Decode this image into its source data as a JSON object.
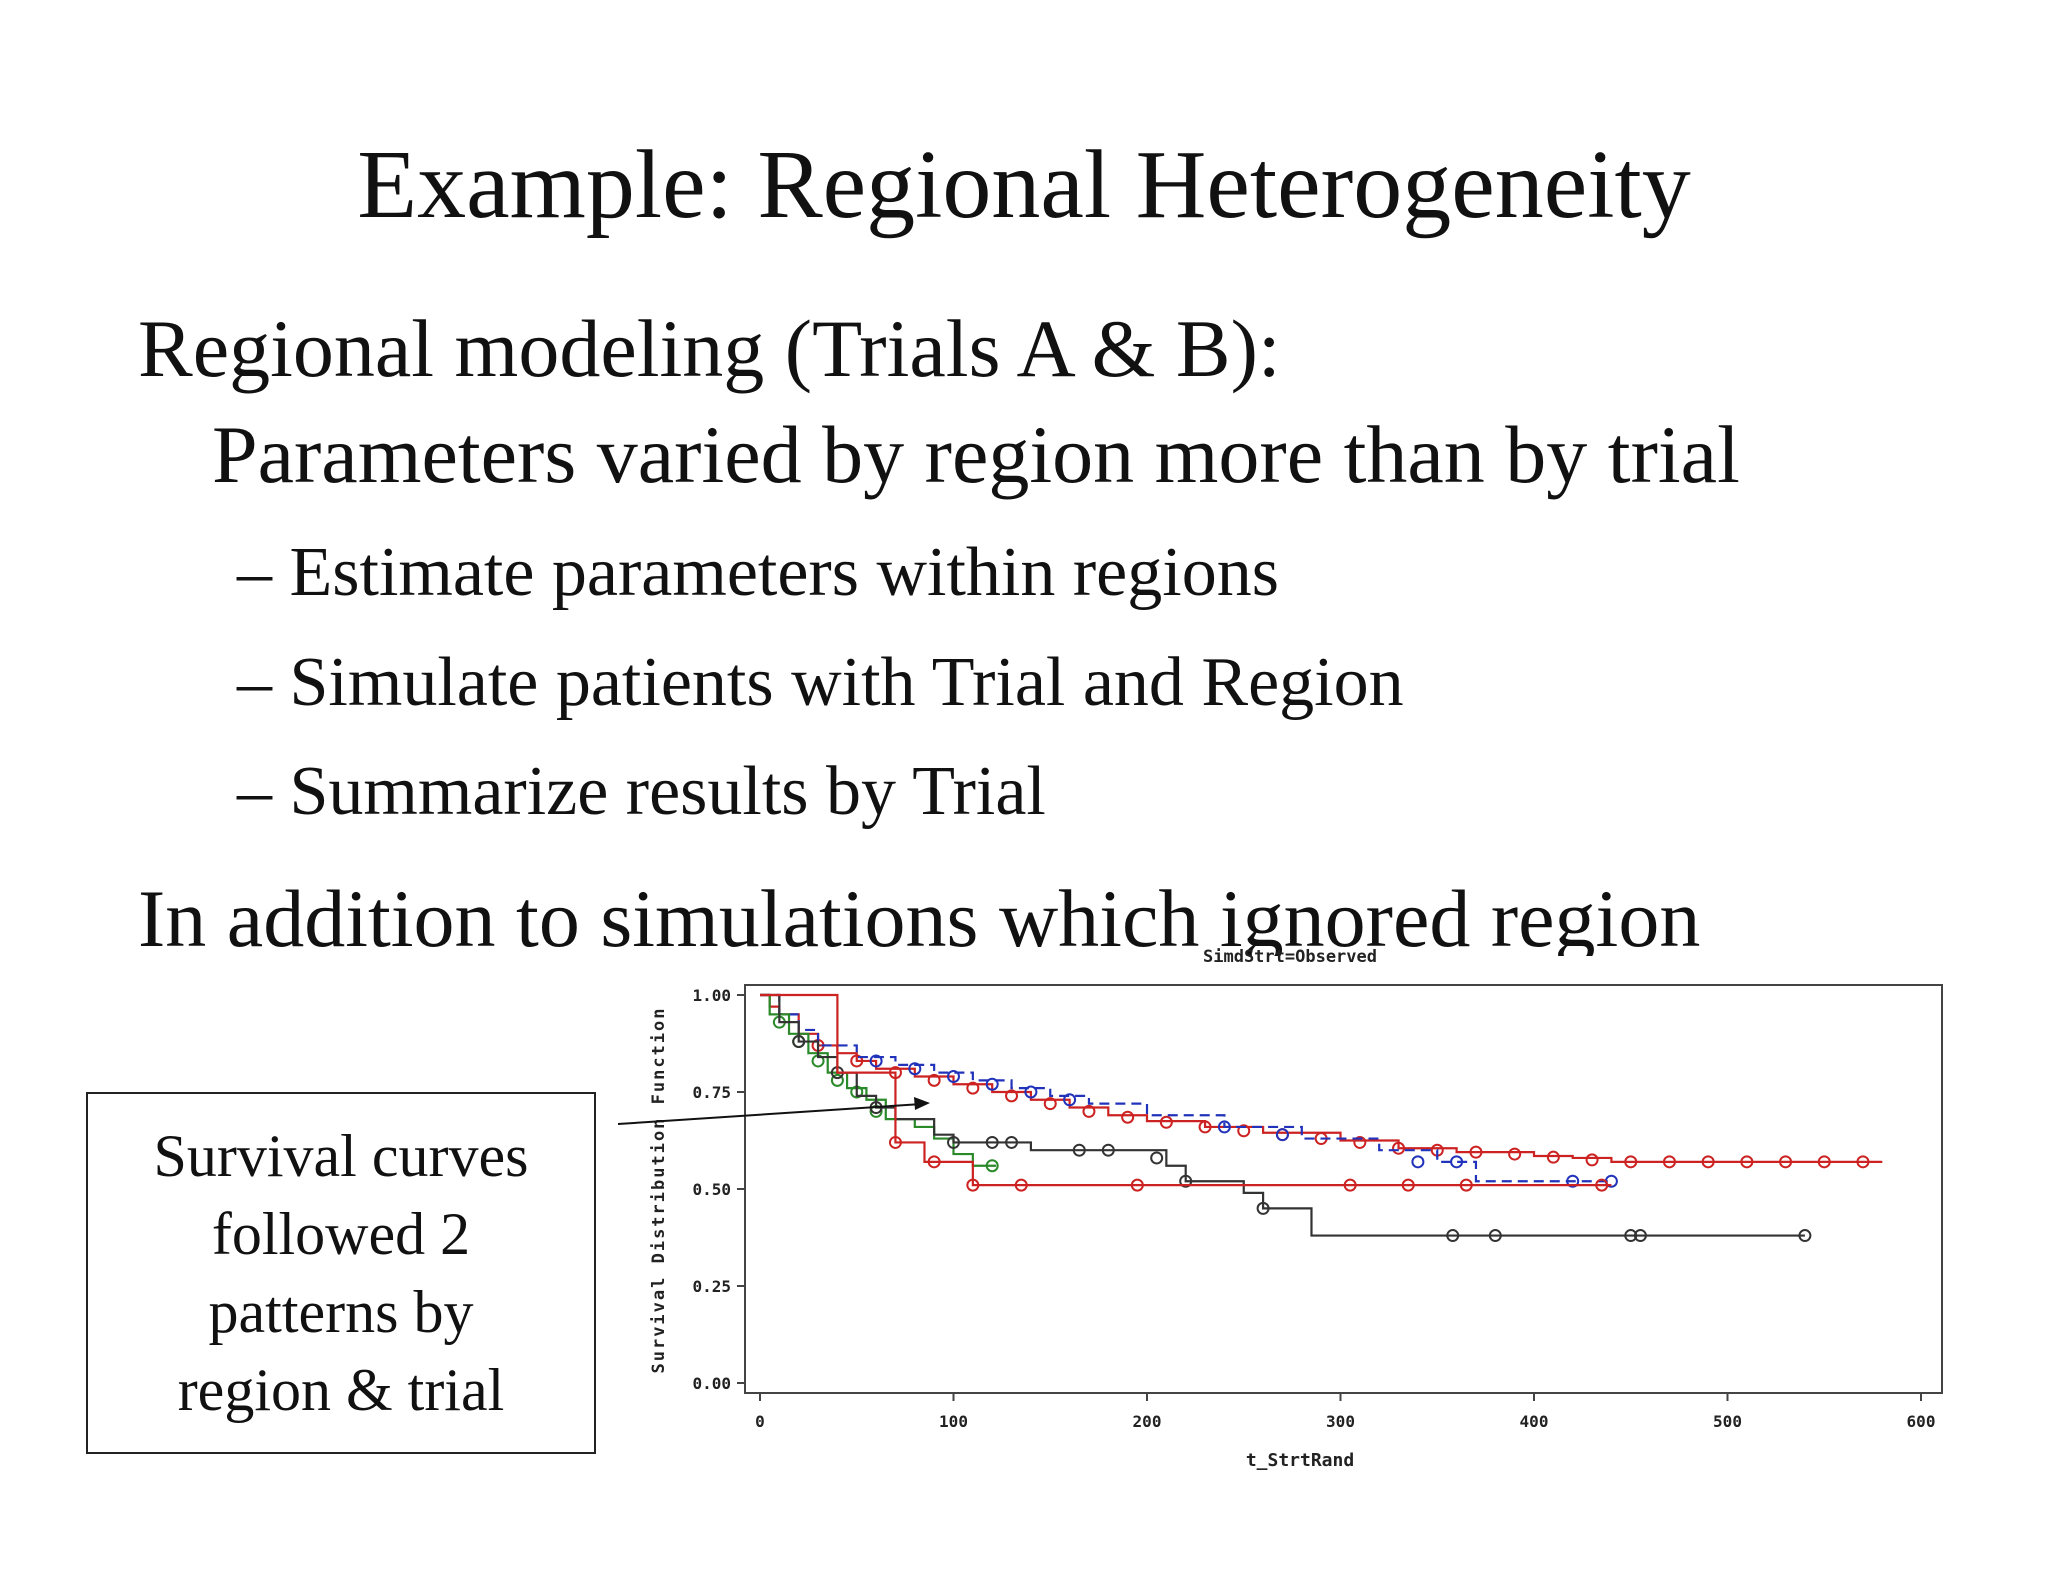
{
  "slide": {
    "title": "Example:  Regional Heterogeneity",
    "lines": [
      "Regional modeling (Trials A & B):",
      "Parameters varied by region more than by trial"
    ],
    "bullets": [
      "– Estimate parameters within regions",
      "– Simulate patients with Trial and Region",
      "– Summarize results by Trial"
    ],
    "partial_line": "In addition to simulations which ignored region",
    "callout": "Survival curves\nfollowed 2\npatterns by\nregion & trial"
  },
  "chart_data": {
    "type": "line",
    "title": "SimdStrt=Observed",
    "xlabel": "t_StrtRand",
    "ylabel": "Survival Distribution Function",
    "xlim": [
      0,
      600
    ],
    "ylim": [
      0,
      1
    ],
    "xticks": [
      0,
      100,
      200,
      300,
      400,
      500,
      600
    ],
    "xtick_labels": [
      "0",
      "100",
      "200",
      "300",
      "400",
      "500",
      "600"
    ],
    "yticks": [
      0,
      0.25,
      0.5,
      0.75,
      1
    ],
    "ytick_labels": [
      "0.00",
      "0.25",
      "0.50",
      "0.75",
      "1.00"
    ],
    "grid": false,
    "legend": "none",
    "censor_marker": "circle",
    "series": [
      {
        "color": "#cc2222",
        "dash": false,
        "points": [
          [
            0,
            1
          ],
          [
            5,
            0.97
          ],
          [
            10,
            0.95
          ],
          [
            20,
            0.9
          ],
          [
            30,
            0.87
          ],
          [
            40,
            0.85
          ],
          [
            50,
            0.83
          ],
          [
            60,
            0.81
          ],
          [
            80,
            0.79
          ],
          [
            100,
            0.77
          ],
          [
            120,
            0.75
          ],
          [
            140,
            0.73
          ],
          [
            160,
            0.71
          ],
          [
            180,
            0.69
          ],
          [
            200,
            0.675
          ],
          [
            230,
            0.66
          ],
          [
            260,
            0.645
          ],
          [
            300,
            0.625
          ],
          [
            330,
            0.605
          ],
          [
            360,
            0.595
          ],
          [
            400,
            0.585
          ],
          [
            420,
            0.58
          ],
          [
            440,
            0.57
          ],
          [
            580,
            0.57
          ]
        ],
        "censored": [
          [
            30,
            0.87
          ],
          [
            50,
            0.83
          ],
          [
            70,
            0.8
          ],
          [
            90,
            0.78
          ],
          [
            110,
            0.76
          ],
          [
            130,
            0.74
          ],
          [
            150,
            0.72
          ],
          [
            170,
            0.7
          ],
          [
            190,
            0.685
          ],
          [
            210,
            0.672
          ],
          [
            230,
            0.66
          ],
          [
            250,
            0.65
          ],
          [
            270,
            0.64
          ],
          [
            290,
            0.63
          ],
          [
            310,
            0.62
          ],
          [
            330,
            0.605
          ],
          [
            350,
            0.6
          ],
          [
            370,
            0.595
          ],
          [
            390,
            0.59
          ],
          [
            410,
            0.582
          ],
          [
            430,
            0.575
          ],
          [
            450,
            0.57
          ],
          [
            470,
            0.57
          ],
          [
            490,
            0.57
          ],
          [
            510,
            0.57
          ],
          [
            530,
            0.57
          ],
          [
            550,
            0.57
          ],
          [
            570,
            0.57
          ]
        ]
      },
      {
        "color": "#2233bb",
        "dash": true,
        "points": [
          [
            0,
            1
          ],
          [
            10,
            0.95
          ],
          [
            20,
            0.91
          ],
          [
            30,
            0.87
          ],
          [
            50,
            0.84
          ],
          [
            70,
            0.82
          ],
          [
            90,
            0.8
          ],
          [
            110,
            0.78
          ],
          [
            130,
            0.76
          ],
          [
            150,
            0.74
          ],
          [
            170,
            0.72
          ],
          [
            200,
            0.69
          ],
          [
            240,
            0.66
          ],
          [
            280,
            0.63
          ],
          [
            320,
            0.6
          ],
          [
            350,
            0.57
          ],
          [
            370,
            0.52
          ],
          [
            440,
            0.52
          ]
        ],
        "censored": [
          [
            60,
            0.83
          ],
          [
            80,
            0.81
          ],
          [
            100,
            0.79
          ],
          [
            120,
            0.77
          ],
          [
            140,
            0.75
          ],
          [
            160,
            0.73
          ],
          [
            240,
            0.66
          ],
          [
            270,
            0.64
          ],
          [
            340,
            0.57
          ],
          [
            360,
            0.57
          ],
          [
            420,
            0.52
          ],
          [
            440,
            0.52
          ]
        ]
      },
      {
        "color": "#2a8a2a",
        "dash": false,
        "points": [
          [
            0,
            1
          ],
          [
            5,
            0.95
          ],
          [
            15,
            0.9
          ],
          [
            25,
            0.85
          ],
          [
            35,
            0.8
          ],
          [
            45,
            0.76
          ],
          [
            55,
            0.73
          ],
          [
            65,
            0.68
          ],
          [
            80,
            0.66
          ],
          [
            90,
            0.63
          ],
          [
            100,
            0.59
          ],
          [
            110,
            0.56
          ],
          [
            122,
            0.56
          ]
        ],
        "censored": [
          [
            10,
            0.93
          ],
          [
            20,
            0.88
          ],
          [
            30,
            0.83
          ],
          [
            40,
            0.78
          ],
          [
            50,
            0.75
          ],
          [
            60,
            0.7
          ],
          [
            120,
            0.56
          ]
        ]
      },
      {
        "color": "#333333",
        "dash": false,
        "points": [
          [
            0,
            1
          ],
          [
            10,
            0.93
          ],
          [
            20,
            0.88
          ],
          [
            30,
            0.84
          ],
          [
            40,
            0.8
          ],
          [
            50,
            0.74
          ],
          [
            60,
            0.71
          ],
          [
            70,
            0.68
          ],
          [
            90,
            0.64
          ],
          [
            100,
            0.62
          ],
          [
            140,
            0.6
          ],
          [
            210,
            0.56
          ],
          [
            220,
            0.52
          ],
          [
            250,
            0.49
          ],
          [
            260,
            0.45
          ],
          [
            285,
            0.38
          ],
          [
            540,
            0.38
          ]
        ],
        "censored": [
          [
            20,
            0.88
          ],
          [
            40,
            0.8
          ],
          [
            60,
            0.71
          ],
          [
            100,
            0.62
          ],
          [
            120,
            0.62
          ],
          [
            130,
            0.62
          ],
          [
            165,
            0.6
          ],
          [
            180,
            0.6
          ],
          [
            205,
            0.58
          ],
          [
            220,
            0.52
          ],
          [
            260,
            0.45
          ],
          [
            358,
            0.38
          ],
          [
            380,
            0.38
          ],
          [
            450,
            0.38
          ],
          [
            455,
            0.38
          ],
          [
            540,
            0.38
          ]
        ]
      },
      {
        "color": "#cc2222",
        "dash": false,
        "points": [
          [
            0,
            1
          ],
          [
            40,
            0.8
          ],
          [
            70,
            0.62
          ],
          [
            85,
            0.57
          ],
          [
            110,
            0.51
          ],
          [
            440,
            0.51
          ]
        ],
        "censored": [
          [
            70,
            0.62
          ],
          [
            90,
            0.57
          ],
          [
            110,
            0.51
          ],
          [
            135,
            0.51
          ],
          [
            195,
            0.51
          ],
          [
            305,
            0.51
          ],
          [
            335,
            0.51
          ],
          [
            365,
            0.51
          ],
          [
            435,
            0.51
          ]
        ]
      }
    ]
  }
}
